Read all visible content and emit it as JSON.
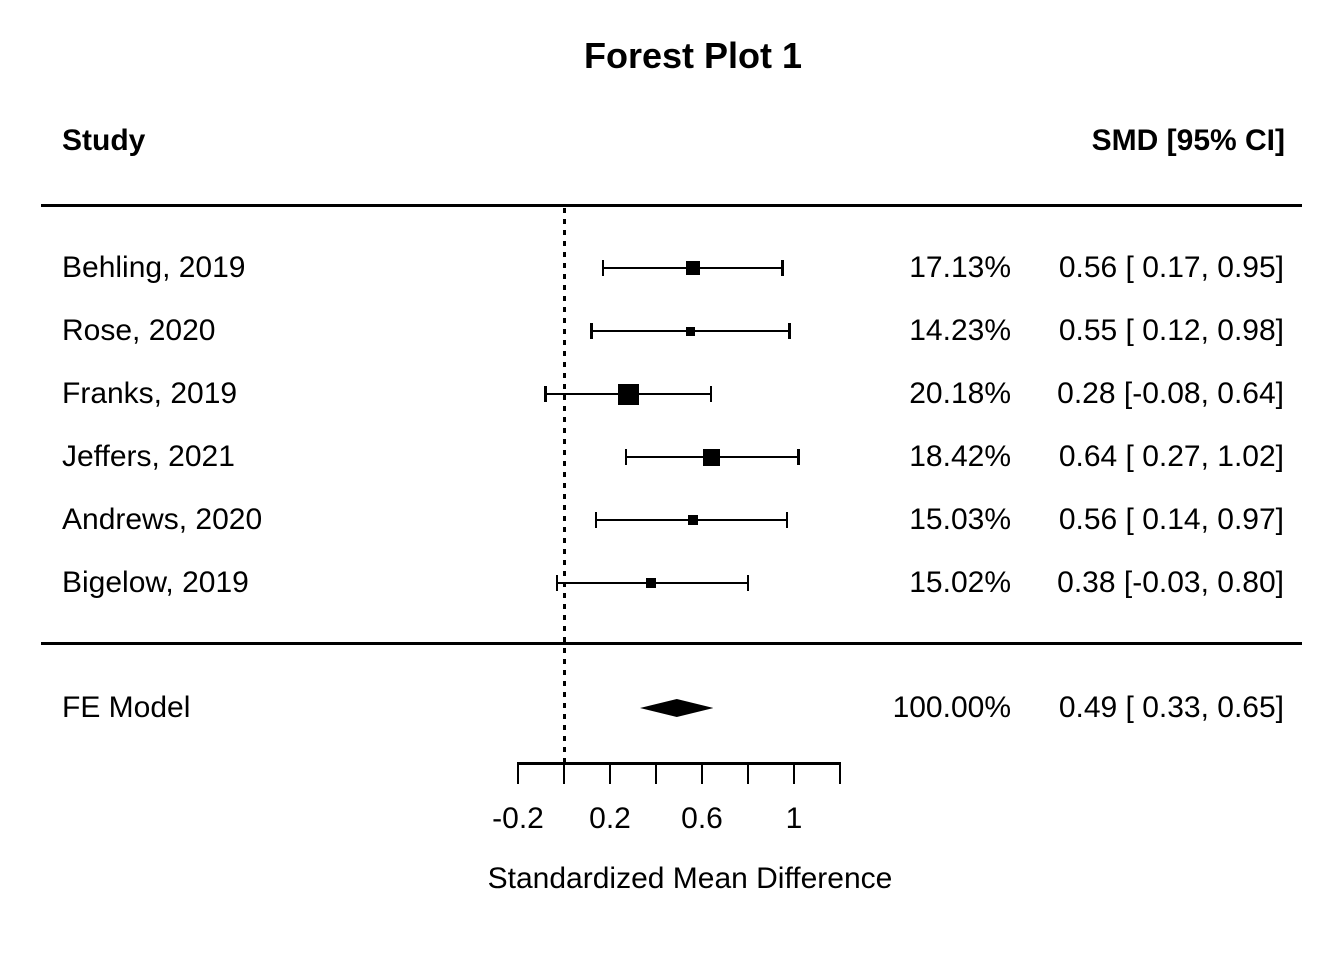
{
  "title": "Forest Plot 1",
  "columns": {
    "study_header": "Study",
    "smd_header": "SMD [95% CI]"
  },
  "colors": {
    "foreground": "#000000",
    "background": "#ffffff"
  },
  "chart_data": {
    "type": "forest",
    "title": "Forest Plot 1",
    "xlabel": "Standardized Mean Difference",
    "xlim": [
      -0.2,
      1.2
    ],
    "zero_reference_line": 0,
    "axis_ticks": [
      -0.2,
      0,
      0.2,
      0.4,
      0.6,
      0.8,
      1,
      1.2
    ],
    "axis_tick_labels": [
      {
        "value": -0.2,
        "text": "-0.2"
      },
      {
        "value": 0.2,
        "text": "0.2"
      },
      {
        "value": 0.6,
        "text": "0.6"
      },
      {
        "value": 1,
        "text": "1"
      }
    ],
    "studies": [
      {
        "label": "Behling, 2019",
        "weight": "17.13%",
        "estimate": 0.56,
        "ci_lower": 0.17,
        "ci_upper": 0.95,
        "smd_ci_text": "0.56 [ 0.17, 0.95]",
        "marker_size_px": 14
      },
      {
        "label": "Rose, 2020",
        "weight": "14.23%",
        "estimate": 0.55,
        "ci_lower": 0.12,
        "ci_upper": 0.98,
        "smd_ci_text": "0.55 [ 0.12, 0.98]",
        "marker_size_px": 9
      },
      {
        "label": "Franks, 2019",
        "weight": "20.18%",
        "estimate": 0.28,
        "ci_lower": -0.08,
        "ci_upper": 0.64,
        "smd_ci_text": "0.28 [-0.08, 0.64]",
        "marker_size_px": 21
      },
      {
        "label": "Jeffers, 2021",
        "weight": "18.42%",
        "estimate": 0.64,
        "ci_lower": 0.27,
        "ci_upper": 1.02,
        "smd_ci_text": "0.64 [ 0.27, 1.02]",
        "marker_size_px": 17
      },
      {
        "label": "Andrews, 2020",
        "weight": "15.03%",
        "estimate": 0.56,
        "ci_lower": 0.14,
        "ci_upper": 0.97,
        "smd_ci_text": "0.56 [ 0.14, 0.97]",
        "marker_size_px": 10
      },
      {
        "label": "Bigelow, 2019",
        "weight": "15.02%",
        "estimate": 0.38,
        "ci_lower": -0.03,
        "ci_upper": 0.8,
        "smd_ci_text": "0.38 [-0.03, 0.80]",
        "marker_size_px": 10
      }
    ],
    "summary": {
      "label": "FE Model",
      "weight": "100.00%",
      "estimate": 0.49,
      "ci_lower": 0.33,
      "ci_upper": 0.65,
      "smd_ci_text": "0.49 [ 0.33, 0.65]"
    }
  }
}
